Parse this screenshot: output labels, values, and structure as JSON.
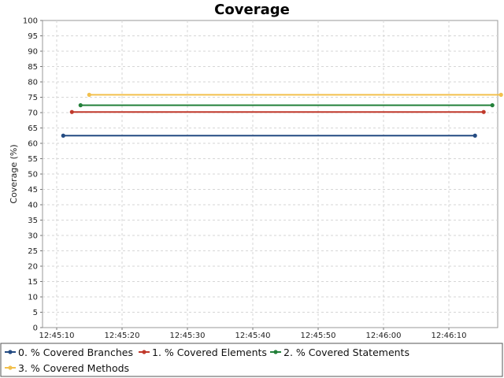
{
  "chart_data": {
    "type": "line",
    "title": "Coverage",
    "xlabel": "",
    "ylabel": "Coverage (%)",
    "x_ticks": [
      "12:45:10",
      "12:45:20",
      "12:45:30",
      "12:45:40",
      "12:45:50",
      "12:46:00",
      "12:46:10"
    ],
    "xlim": [
      "12:45:10",
      "12:46:10"
    ],
    "x": [
      "12:45:11",
      "12:46:14"
    ],
    "ylim": [
      0,
      100
    ],
    "y_ticks": [
      0,
      5,
      10,
      15,
      20,
      25,
      30,
      35,
      40,
      45,
      50,
      55,
      60,
      65,
      70,
      75,
      80,
      85,
      90,
      95,
      100
    ],
    "grid": true,
    "legend_position": "bottom",
    "series": [
      {
        "name": "0. % Covered Branches",
        "color": "#244b82",
        "values": [
          62.5,
          62.5
        ]
      },
      {
        "name": "1. % Covered Elements",
        "color": "#c0392b",
        "values": [
          70.2,
          70.2
        ]
      },
      {
        "name": "2. % Covered Statements",
        "color": "#23803a",
        "values": [
          72.4,
          72.4
        ]
      },
      {
        "name": "3. % Covered Methods",
        "color": "#f2c04d",
        "values": [
          75.8,
          75.8
        ]
      }
    ]
  }
}
